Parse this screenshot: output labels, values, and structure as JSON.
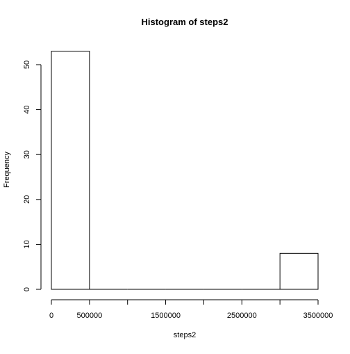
{
  "chart_data": {
    "type": "bar",
    "title": "Histogram of steps2",
    "xlabel": "steps2",
    "ylabel": "Frequency",
    "bins": [
      {
        "start": 0,
        "end": 500000,
        "count": 53
      },
      {
        "start": 500000,
        "end": 1000000,
        "count": 0
      },
      {
        "start": 1000000,
        "end": 1500000,
        "count": 0
      },
      {
        "start": 1500000,
        "end": 2000000,
        "count": 0
      },
      {
        "start": 2000000,
        "end": 2500000,
        "count": 0
      },
      {
        "start": 2500000,
        "end": 3000000,
        "count": 0
      },
      {
        "start": 3000000,
        "end": 3500000,
        "count": 8
      }
    ],
    "xlim": [
      0,
      3500000
    ],
    "ylim": [
      0,
      53
    ],
    "x_ticks": [
      0,
      500000,
      1000000,
      1500000,
      2000000,
      2500000,
      3000000,
      3500000
    ],
    "x_tick_labels": [
      "0",
      "500000",
      "",
      "1500000",
      "",
      "2500000",
      "",
      "3500000"
    ],
    "y_ticks": [
      0,
      10,
      20,
      30,
      40,
      50
    ],
    "y_tick_labels": [
      "0",
      "10",
      "20",
      "30",
      "40",
      "50"
    ],
    "grid": false,
    "colors": {
      "bar_fill": "#ffffff",
      "bar_stroke": "#000000"
    }
  }
}
